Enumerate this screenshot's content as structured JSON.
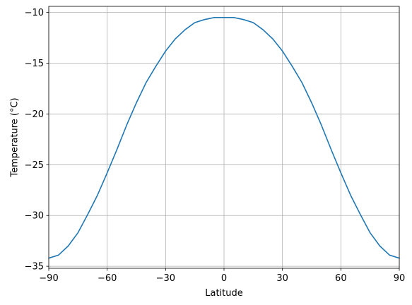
{
  "chart_data": {
    "type": "line",
    "title": "",
    "xlabel": "Latitude",
    "ylabel": "Temperature (°C)",
    "xlim": [
      -90,
      90
    ],
    "ylim": [
      -35.2,
      -9.4
    ],
    "x_ticks": [
      -90,
      -60,
      -30,
      0,
      30,
      60,
      90
    ],
    "x_tick_labels": [
      "−90",
      "−60",
      "−30",
      "0",
      "30",
      "60",
      "90"
    ],
    "y_ticks": [
      -35,
      -30,
      -25,
      -20,
      -15,
      -10
    ],
    "y_tick_labels": [
      "−35",
      "−30",
      "−25",
      "−20",
      "−15",
      "−10"
    ],
    "grid": true,
    "legend": "none",
    "series": [
      {
        "color": "#1f77b4",
        "x": [
          -90,
          -85,
          -80,
          -75,
          -70,
          -65,
          -60,
          -55,
          -50,
          -45,
          -40,
          -35,
          -30,
          -25,
          -20,
          -15,
          -10,
          -5,
          0,
          5,
          10,
          15,
          20,
          25,
          30,
          35,
          40,
          45,
          50,
          55,
          60,
          65,
          70,
          75,
          80,
          85,
          90
        ],
        "y": [
          -34.2,
          -33.9,
          -33.0,
          -31.7,
          -29.9,
          -28.0,
          -25.8,
          -23.5,
          -21.1,
          -18.9,
          -16.9,
          -15.3,
          -13.8,
          -12.6,
          -11.7,
          -11.0,
          -10.7,
          -10.5,
          -10.5,
          -10.5,
          -10.7,
          -11.0,
          -11.7,
          -12.6,
          -13.8,
          -15.3,
          -16.9,
          -18.9,
          -21.1,
          -23.5,
          -25.8,
          -28.0,
          -29.9,
          -31.7,
          -33.0,
          -33.9,
          -34.2
        ]
      }
    ]
  }
}
